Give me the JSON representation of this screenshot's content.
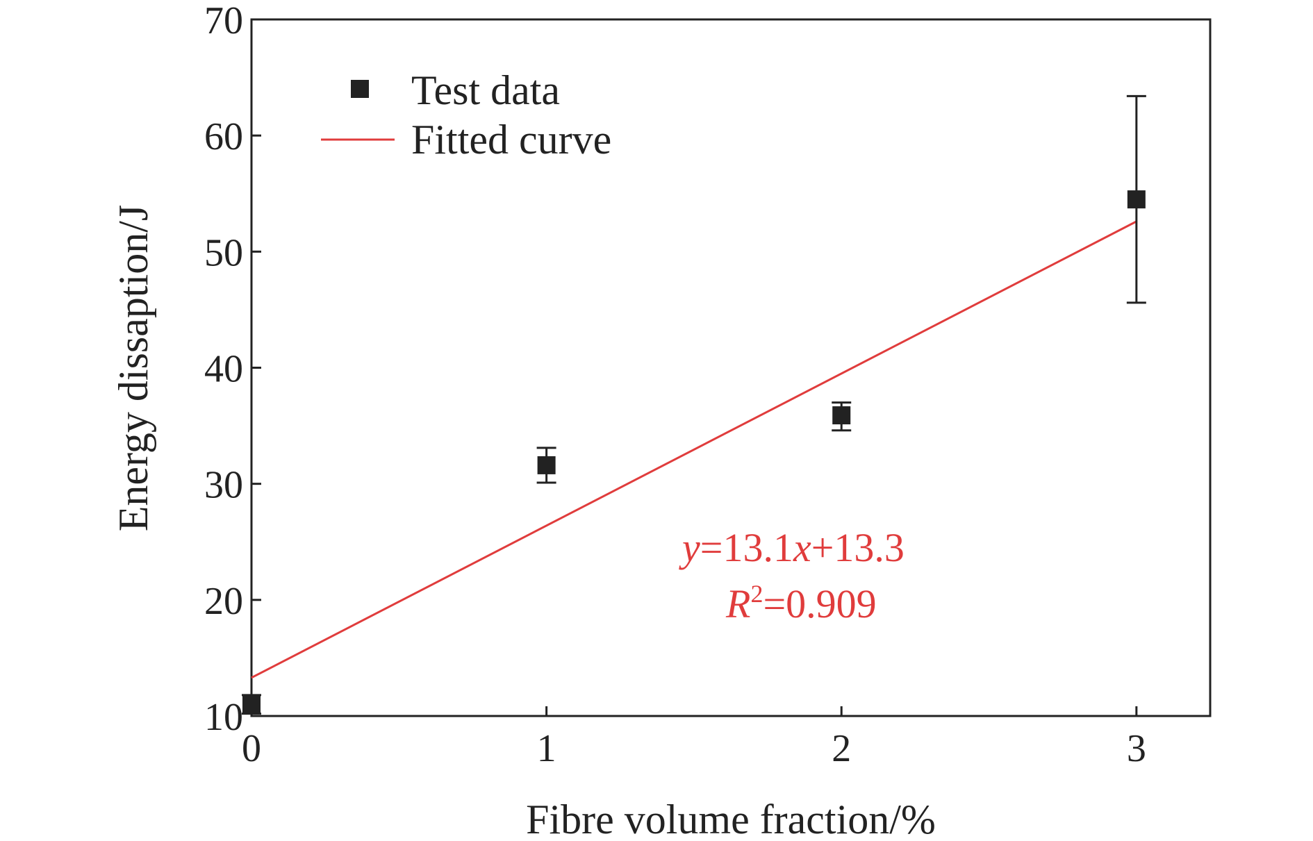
{
  "chart_data": {
    "type": "scatter",
    "xlabel": "Fibre volume fraction/%",
    "ylabel": "Energy dissaption/J",
    "xlim": [
      0,
      3.25
    ],
    "ylim": [
      10,
      70
    ],
    "x_ticks": [
      "0",
      "1",
      "2",
      "3"
    ],
    "y_ticks": [
      "10",
      "20",
      "30",
      "40",
      "50",
      "60",
      "70"
    ],
    "grid": false,
    "legend_position": "top-left",
    "series": [
      {
        "name": "Test data",
        "kind": "points",
        "marker": "square",
        "color": "#222222",
        "points": [
          {
            "x": 0,
            "y": 11.0,
            "err_low": 10.2,
            "err_high": 11.8
          },
          {
            "x": 1,
            "y": 31.6,
            "err_low": 30.1,
            "err_high": 33.1
          },
          {
            "x": 2,
            "y": 35.9,
            "err_low": 34.6,
            "err_high": 37.0
          },
          {
            "x": 3,
            "y": 54.5,
            "err_low": 45.6,
            "err_high": 63.4
          }
        ]
      },
      {
        "name": "Fitted curve",
        "kind": "line",
        "color": "#e03c3c",
        "slope": 13.1,
        "intercept": 13.3,
        "x_range": [
          0,
          3
        ]
      }
    ],
    "annotation": {
      "equation_y": "y",
      "equation_rest": "=13.1",
      "equation_x": "x",
      "equation_tail": "+13.3",
      "r_symbol": "R",
      "r_exp": "2",
      "r_value": "=0.909",
      "color": "#e03c3c"
    }
  }
}
